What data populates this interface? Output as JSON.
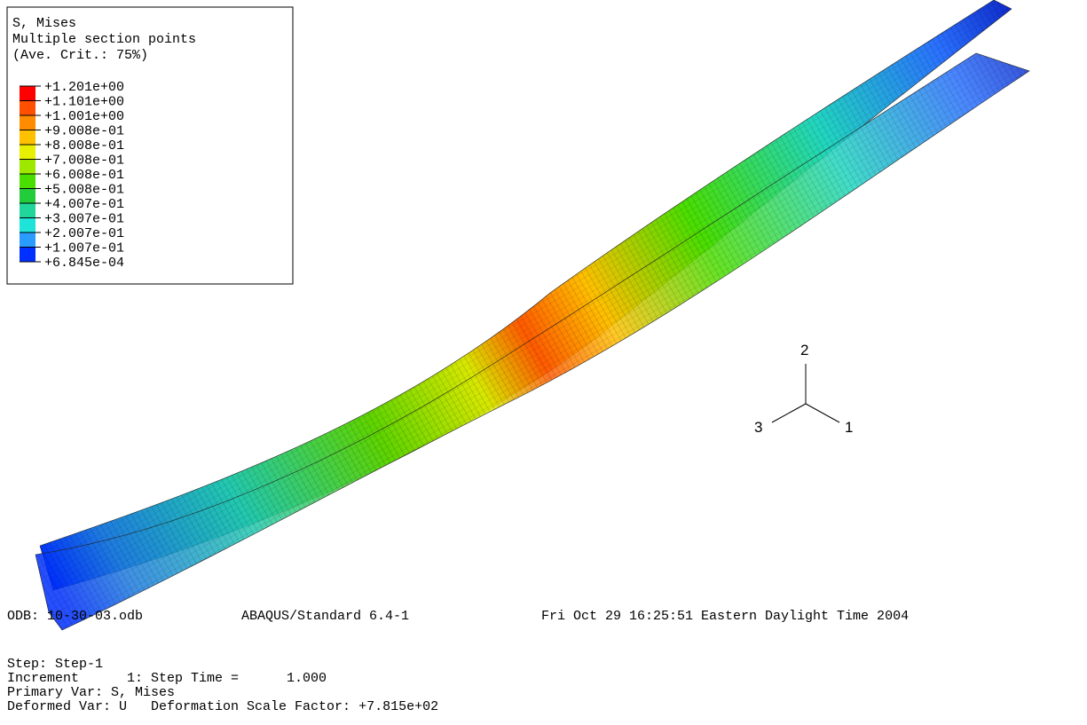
{
  "legend": {
    "title_lines": [
      "S, Mises",
      "Multiple section points",
      "(Ave. Crit.: 75%)"
    ],
    "values": [
      "+1.201e+00",
      "+1.101e+00",
      "+1.001e+00",
      "+9.008e-01",
      "+8.008e-01",
      "+7.008e-01",
      "+6.008e-01",
      "+5.008e-01",
      "+4.007e-01",
      "+3.007e-01",
      "+2.007e-01",
      "+1.007e-01",
      "+6.845e-04"
    ],
    "colors": [
      "#ff0000",
      "#ff4f00",
      "#ff8b00",
      "#ffc000",
      "#e6f000",
      "#9ee800",
      "#4ade00",
      "#22cc3a",
      "#21d69a",
      "#1ee3d8",
      "#2a9bff",
      "#0030ff"
    ]
  },
  "triad": {
    "axes": [
      "2",
      "3",
      "1"
    ]
  },
  "footer": {
    "odb": "ODB: 10-30-03.odb",
    "solver": "ABAQUS/Standard 6.4-1",
    "date": "Fri Oct 29 16:25:51 Eastern Daylight Time 2004",
    "lines": [
      "Step: Step-1",
      "Increment      1: Step Time =      1.000",
      "Primary Var: S, Mises",
      "Deformed Var: U   Deformation Scale Factor: +7.815e+02"
    ]
  }
}
